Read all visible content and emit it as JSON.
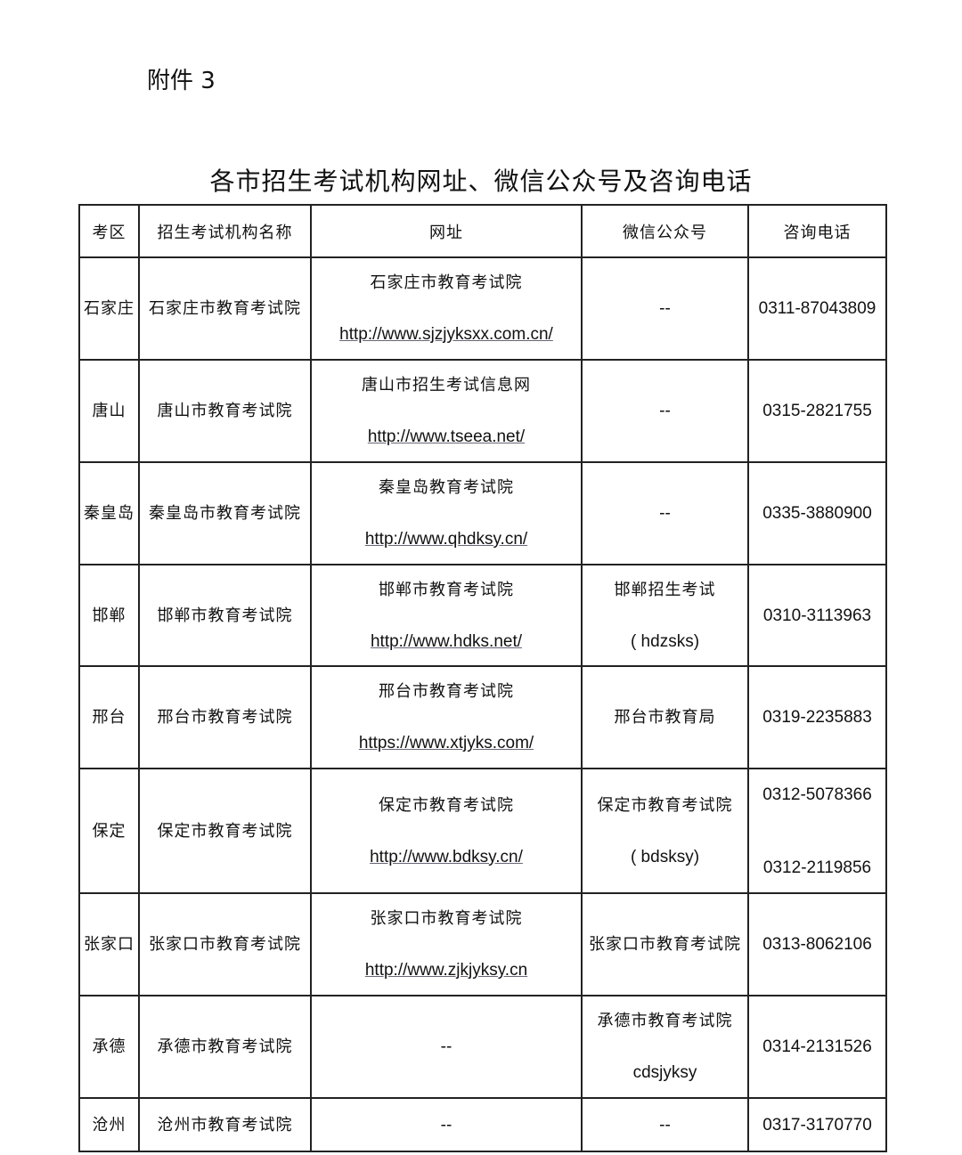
{
  "attachment_label": "附件 3",
  "title": "各市招生考试机构网址、微信公众号及咨询电话",
  "table": {
    "headers": [
      "考区",
      "招生考试机构名称",
      "网址",
      "微信公众号",
      "咨询电话"
    ],
    "rows": [
      {
        "region": "石家庄",
        "institution": "石家庄市教育考试院",
        "site_name": "石家庄市教育考试院",
        "url": "http://www.sjzjyksxx.com.cn/",
        "wechat": [
          "--"
        ],
        "phones": [
          "0311-87043809"
        ]
      },
      {
        "region": "唐山",
        "institution": "唐山市教育考试院",
        "site_name": "唐山市招生考试信息网",
        "url": "http://www.tseea.net/",
        "wechat": [
          "--"
        ],
        "phones": [
          "0315-2821755"
        ]
      },
      {
        "region": "秦皇岛",
        "institution": "秦皇岛市教育考试院",
        "site_name": "秦皇岛教育考试院",
        "url": "http://www.qhdksy.cn/",
        "wechat": [
          "--"
        ],
        "phones": [
          "0335-3880900"
        ]
      },
      {
        "region": "邯郸",
        "institution": "邯郸市教育考试院",
        "site_name": "邯郸市教育考试院",
        "url": "http://www.hdks.net/",
        "wechat": [
          "邯郸招生考试",
          "( hdzsks)"
        ],
        "phones": [
          "0310-3113963"
        ]
      },
      {
        "region": "邢台",
        "institution": "邢台市教育考试院",
        "site_name": "邢台市教育考试院",
        "url": "https://www.xtjyks.com/",
        "wechat": [
          "邢台市教育局"
        ],
        "phones": [
          "0319-2235883"
        ]
      },
      {
        "region": "保定",
        "institution": "保定市教育考试院",
        "site_name": "保定市教育考试院",
        "url": "http://www.bdksy.cn/",
        "wechat": [
          "保定市教育考试院",
          "( bdsksy)"
        ],
        "phones": [
          "0312-5078366",
          "0312-2119856"
        ]
      },
      {
        "region": "张家口",
        "institution": "张家口市教育考试院",
        "site_name": "张家口市教育考试院",
        "url": "http://www.zjkjyksy.cn",
        "wechat": [
          "张家口市教育考试院"
        ],
        "phones": [
          "0313-8062106"
        ]
      },
      {
        "region": "承德",
        "institution": "承德市教育考试院",
        "site_name": "",
        "url": "--",
        "wechat": [
          "承德市教育考试院",
          "cdsjyksy"
        ],
        "phones": [
          "0314-2131526"
        ]
      },
      {
        "region": "沧州",
        "institution": "沧州市教育考试院",
        "site_name": "",
        "url": "--",
        "wechat": [
          "--"
        ],
        "phones": [
          "0317-3170770"
        ]
      }
    ]
  }
}
